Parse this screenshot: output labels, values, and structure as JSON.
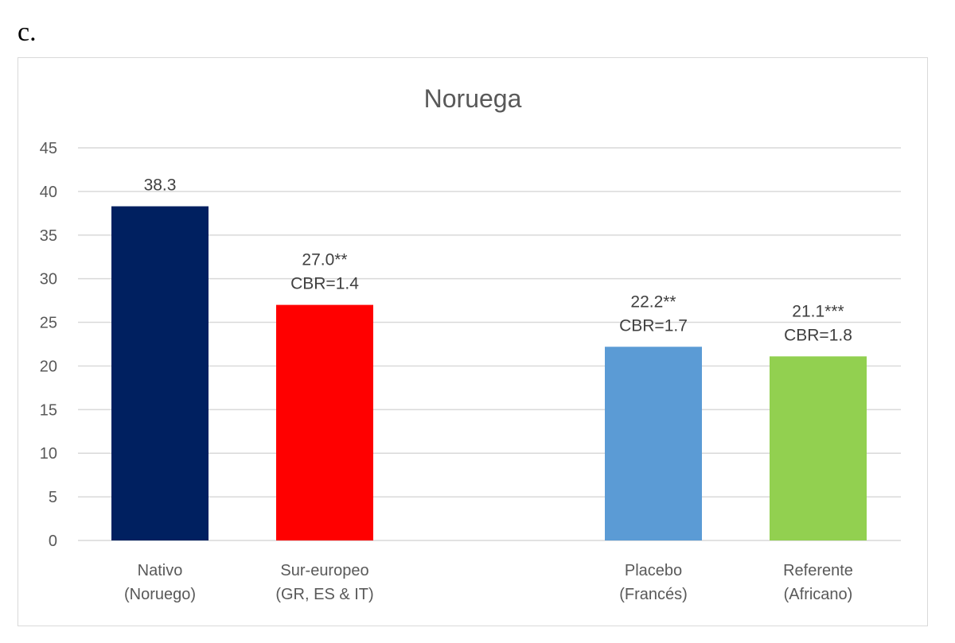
{
  "panel_label": "c.",
  "chart_data": {
    "type": "bar",
    "title": "Noruega",
    "xlabel": "",
    "ylabel": "",
    "ylim": [
      0,
      45
    ],
    "yticks": [
      0,
      5,
      10,
      15,
      20,
      25,
      30,
      35,
      40,
      45
    ],
    "grid": true,
    "categories": [
      [
        "Nativo",
        "(Noruego)"
      ],
      [
        "Sur-europeo",
        "(GR, ES & IT)"
      ],
      [
        "Placebo",
        "(Francés)"
      ],
      [
        "Referente",
        "(Africano)"
      ]
    ],
    "values": [
      38.3,
      27.0,
      22.2,
      21.1
    ],
    "data_labels": [
      [
        "38.3"
      ],
      [
        "27.0**",
        "CBR=1.4"
      ],
      [
        "22.2**",
        "CBR=1.7"
      ],
      [
        "21.1***",
        "CBR=1.8"
      ]
    ],
    "colors": [
      "#002060",
      "#ff0000",
      "#5b9bd5",
      "#92d050"
    ]
  }
}
